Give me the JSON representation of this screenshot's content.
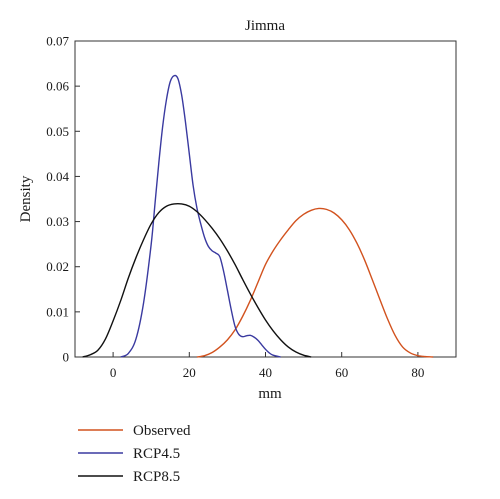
{
  "chart_data": {
    "type": "line",
    "title": "Jimma",
    "xlabel": "mm",
    "ylabel": "Density",
    "xlim": [
      -10,
      90
    ],
    "ylim": [
      0,
      0.07
    ],
    "xticks": [
      0,
      20,
      40,
      60,
      80
    ],
    "yticks": [
      0,
      0.01,
      0.02,
      0.03,
      0.04,
      0.05,
      0.06,
      0.07
    ],
    "ytick_labels": [
      "0",
      "0.01",
      "0.02",
      "0.03",
      "0.04",
      "0.05",
      "0.06",
      "0.07"
    ],
    "grid": false,
    "legend_position": "bottom-left",
    "series": [
      {
        "name": "Observed",
        "color": "#d2521e",
        "x": [
          22,
          24,
          26,
          28,
          30,
          32,
          34,
          36,
          38,
          40,
          42,
          44,
          46,
          48,
          50,
          52,
          54,
          56,
          58,
          60,
          62,
          64,
          66,
          68,
          70,
          72,
          74,
          76,
          78,
          80,
          82,
          84
        ],
        "y": [
          0,
          0.0003,
          0.001,
          0.0022,
          0.0038,
          0.006,
          0.009,
          0.0125,
          0.0165,
          0.0205,
          0.0235,
          0.026,
          0.0282,
          0.0302,
          0.0316,
          0.0325,
          0.0329,
          0.0327,
          0.0319,
          0.0304,
          0.0282,
          0.0252,
          0.0215,
          0.0172,
          0.0128,
          0.0085,
          0.0048,
          0.0022,
          0.0009,
          0.0003,
          0.0001,
          0
        ]
      },
      {
        "name": "RCP4.5",
        "color": "#3a3aa0",
        "x": [
          2,
          4,
          6,
          8,
          10,
          11,
          12,
          13,
          14,
          15,
          16,
          17,
          18,
          19,
          20,
          21,
          22,
          23,
          24,
          25,
          26,
          27,
          28,
          29,
          30,
          31,
          32,
          33,
          34,
          35,
          36,
          37,
          38,
          39,
          40,
          41,
          42,
          44
        ],
        "y": [
          0,
          0.0008,
          0.004,
          0.012,
          0.025,
          0.034,
          0.043,
          0.051,
          0.057,
          0.061,
          0.0623,
          0.0617,
          0.058,
          0.052,
          0.045,
          0.038,
          0.033,
          0.0295,
          0.0265,
          0.0245,
          0.0235,
          0.023,
          0.0222,
          0.019,
          0.0148,
          0.0105,
          0.0068,
          0.005,
          0.0045,
          0.0047,
          0.0048,
          0.0044,
          0.0037,
          0.0027,
          0.0017,
          0.0009,
          0.0004,
          0
        ]
      },
      {
        "name": "RCP8.5",
        "color": "#111111",
        "x": [
          -8,
          -6,
          -4,
          -2,
          0,
          2,
          4,
          6,
          8,
          10,
          12,
          14,
          16,
          18,
          20,
          22,
          24,
          26,
          28,
          30,
          32,
          34,
          36,
          38,
          40,
          42,
          44,
          46,
          48,
          50,
          52
        ],
        "y": [
          0,
          0.0005,
          0.0015,
          0.004,
          0.008,
          0.0125,
          0.0175,
          0.022,
          0.026,
          0.0295,
          0.032,
          0.0334,
          0.0339,
          0.0339,
          0.0334,
          0.0322,
          0.0305,
          0.0285,
          0.0262,
          0.0235,
          0.0205,
          0.0172,
          0.014,
          0.011,
          0.0082,
          0.0058,
          0.0038,
          0.0022,
          0.0011,
          0.0004,
          0
        ]
      }
    ]
  }
}
